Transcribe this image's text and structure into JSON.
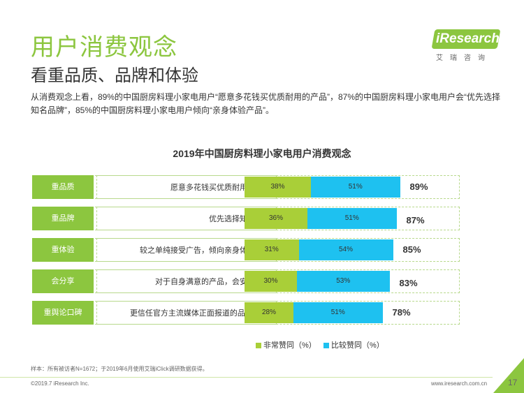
{
  "header": {
    "title": "用户消费观念",
    "subtitle": "看重品质、品牌和体验",
    "body": "从消费观念上看，89%的中国厨房料理小家电用户“愿意多花钱买优质耐用的产品”，87%的中国厨房料理小家电用户会“优先选择知名品牌”，85%的中国厨房料理小家电用户倾向“亲身体验产品”。"
  },
  "logo": {
    "text": "iResearch",
    "sub": "艾瑞咨询"
  },
  "chart_data": {
    "type": "bar",
    "orientation": "horizontal",
    "stacked": true,
    "title": "2019年中国厨房料理小家电用户消费观念",
    "categories": [
      "重品质",
      "重品牌",
      "重体验",
      "会分享",
      "重舆论口碑"
    ],
    "descriptions": [
      "愿意多花钱买优质耐用的产品",
      "优先选择知名品牌",
      "较之单纯接受广告，倾向亲身体验产品",
      "对于自身满意的产品，会安利他人",
      "更信任官方主流媒体正面报道的品牌/产品"
    ],
    "series": [
      {
        "name": "非常赞同（%）",
        "values": [
          38,
          36,
          31,
          30,
          28
        ],
        "labels": [
          "38%",
          "36%",
          "31%",
          "30%",
          "28%"
        ],
        "color": "#a9cf38"
      },
      {
        "name": "比较赞同（%）",
        "values": [
          51,
          51,
          54,
          53,
          51
        ],
        "labels": [
          "51%",
          "51%",
          "54%",
          "53%",
          "51%"
        ],
        "color": "#1ec1f0"
      }
    ],
    "totals": [
      "89%",
      "87%",
      "85%",
      "83%",
      "78%"
    ],
    "xlim": [
      0,
      100
    ]
  },
  "footer": {
    "note": "样本：所有被访者N=1672；于2019年6月使用艾瑞iClick调研数据获得。",
    "copyright": "©2019.7 iResearch Inc.",
    "url": "www.iresearch.com.cn",
    "page": "17"
  }
}
